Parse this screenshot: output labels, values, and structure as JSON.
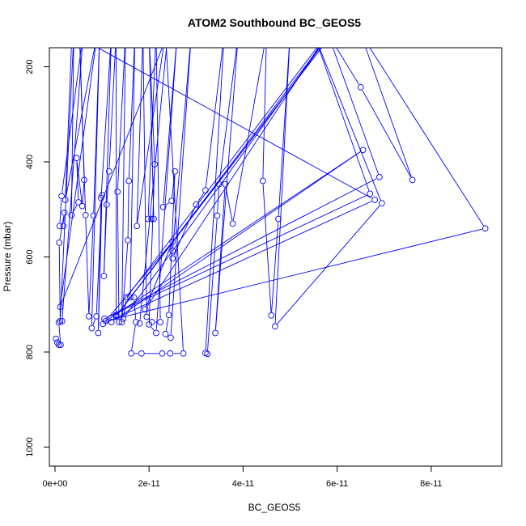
{
  "chart_data": {
    "type": "line",
    "title": "ATOM2 Southbound BC_GEOS5",
    "xlabel": "BC_GEOS5",
    "ylabel": "Pressure (mbar)",
    "xlim": [
      -1.2e-12,
      9.5e-11
    ],
    "ylim": [
      1040,
      160
    ],
    "y_reversed": true,
    "x_ticks": [
      {
        "value": 0,
        "label": "0e+00"
      },
      {
        "value": 2e-11,
        "label": "2e-11"
      },
      {
        "value": 4e-11,
        "label": "4e-11"
      },
      {
        "value": 6e-11,
        "label": "6e-11"
      },
      {
        "value": 8e-11,
        "label": "8e-11"
      }
    ],
    "y_ticks": [
      {
        "value": 200,
        "label": "200"
      },
      {
        "value": 400,
        "label": "400"
      },
      {
        "value": 600,
        "label": "600"
      },
      {
        "value": 800,
        "label": "800"
      },
      {
        "value": 1000,
        "label": "1000"
      }
    ],
    "color": "#0000ff",
    "marker": "open-circle",
    "series": [
      {
        "points": [
          [
            2e-13,
            772
          ],
          [
            5e-13,
            780
          ],
          [
            8e-13,
            785
          ],
          [
            1.2e-12,
            785
          ],
          [
            8e-13,
            738
          ],
          [
            1.5e-12,
            735
          ],
          [
            6e-12,
            130
          ],
          [
            1.4e-12,
            472
          ],
          [
            1e-12,
            535
          ],
          [
            1.8e-12,
            535
          ],
          [
            2e-12,
            507
          ],
          [
            9e-13,
            570
          ],
          [
            1.1e-12,
            735
          ],
          [
            4e-12,
            130
          ],
          [
            3.5e-12,
            512
          ],
          [
            5e-12,
            485
          ],
          [
            4.6e-12,
            392
          ],
          [
            5.8e-12,
            493
          ],
          [
            6.2e-12,
            438
          ],
          [
            5.2e-12,
            130
          ],
          [
            6.5e-12,
            512
          ],
          [
            7.2e-12,
            725
          ],
          [
            8.2e-12,
            513
          ],
          [
            9.5e-12,
            130
          ],
          [
            7.8e-12,
            750
          ],
          [
            8.8e-12,
            725
          ],
          [
            1e-11,
            470
          ],
          [
            9.2e-12,
            760
          ],
          [
            9.8e-12,
            476
          ],
          [
            1.2e-11,
            130
          ],
          [
            1.04e-11,
            640
          ],
          [
            1.1e-11,
            490
          ],
          [
            1.15e-11,
            420
          ],
          [
            1.3e-11,
            130
          ],
          [
            1.3e-11,
            722
          ],
          [
            1.36e-11,
            737
          ],
          [
            1.33e-11,
            463
          ],
          [
            1.5e-11,
            130
          ],
          [
            1.42e-11,
            737
          ],
          [
            1.55e-11,
            565
          ],
          [
            1.57e-11,
            440
          ],
          [
            1.7e-11,
            130
          ],
          [
            1.6e-11,
            685
          ],
          [
            1.68e-11,
            685
          ],
          [
            1.72e-11,
            737
          ],
          [
            1.62e-11,
            803
          ],
          [
            1.84e-11,
            803
          ],
          [
            2.28e-11,
            803
          ],
          [
            2.45e-11,
            803
          ],
          [
            2.73e-11,
            803
          ],
          [
            2.35e-11,
            130
          ],
          [
            1.74e-11,
            535
          ],
          [
            1.87e-11,
            130
          ],
          [
            1.95e-11,
            726
          ],
          [
            2.06e-11,
            737
          ],
          [
            2.24e-11,
            737
          ],
          [
            2.15e-11,
            130
          ],
          [
            1.98e-11,
            520
          ],
          [
            2.05e-11,
            520
          ],
          [
            2.1e-11,
            520
          ],
          [
            2e-11,
            130
          ],
          [
            2.12e-11,
            405
          ],
          [
            2e-11,
            742
          ],
          [
            2.15e-11,
            760
          ],
          [
            2.6e-11,
            130
          ],
          [
            2.3e-11,
            495
          ],
          [
            2.48e-11,
            482
          ],
          [
            2.55e-11,
            420
          ],
          [
            2.42e-11,
            722
          ],
          [
            2.35e-11,
            762
          ],
          [
            2.46e-11,
            770
          ],
          [
            2.9e-11,
            130
          ],
          [
            2.5e-11,
            587
          ],
          [
            2.5e-11,
            603
          ],
          [
            3e-11,
            490
          ],
          [
            3.2e-11,
            460
          ],
          [
            3.6e-11,
            130
          ],
          [
            3.2e-11,
            802
          ],
          [
            3.24e-11,
            804
          ],
          [
            3.45e-11,
            513
          ],
          [
            3.49e-11,
            447
          ],
          [
            3.9e-11,
            130
          ],
          [
            3.41e-11,
            760
          ],
          [
            3.62e-11,
            447
          ],
          [
            3.78e-11,
            530
          ],
          [
            4.5e-11,
            130
          ],
          [
            4.42e-11,
            440
          ],
          [
            4.6e-11,
            723
          ],
          [
            4.75e-11,
            520
          ],
          [
            5e-11,
            130
          ],
          [
            4.68e-11,
            746
          ],
          [
            6.95e-11,
            487
          ],
          [
            5.5e-11,
            130
          ],
          [
            6.7e-11,
            467
          ],
          [
            1.05e-11,
            730
          ],
          [
            6.9e-11,
            432
          ],
          [
            5.8e-11,
            130
          ],
          [
            6.5e-11,
            243
          ],
          [
            7.6e-11,
            438
          ],
          [
            6.5e-11,
            130
          ],
          [
            9.15e-11,
            540
          ],
          [
            1.08e-11,
            735
          ],
          [
            6.55e-11,
            375
          ],
          [
            1.2e-11,
            737
          ],
          [
            5.9e-11,
            130
          ],
          [
            1.3e-11,
            725
          ],
          [
            5.85e-11,
            130
          ],
          [
            1.45e-11,
            730
          ],
          [
            1.52e-11,
            685
          ],
          [
            5.8e-11,
            130
          ],
          [
            1.92e-11,
            710
          ],
          [
            2.5e-11,
            568
          ],
          [
            1.02e-11,
            741
          ],
          [
            6.8e-11,
            480
          ],
          [
            3.6e-12,
            130
          ],
          [
            2.2e-12,
            480
          ],
          [
            9e-12,
            130
          ],
          [
            1.1e-12,
            705
          ],
          [
            2.4e-11,
            130
          ],
          [
            1.8e-11,
            740
          ]
        ]
      }
    ]
  }
}
